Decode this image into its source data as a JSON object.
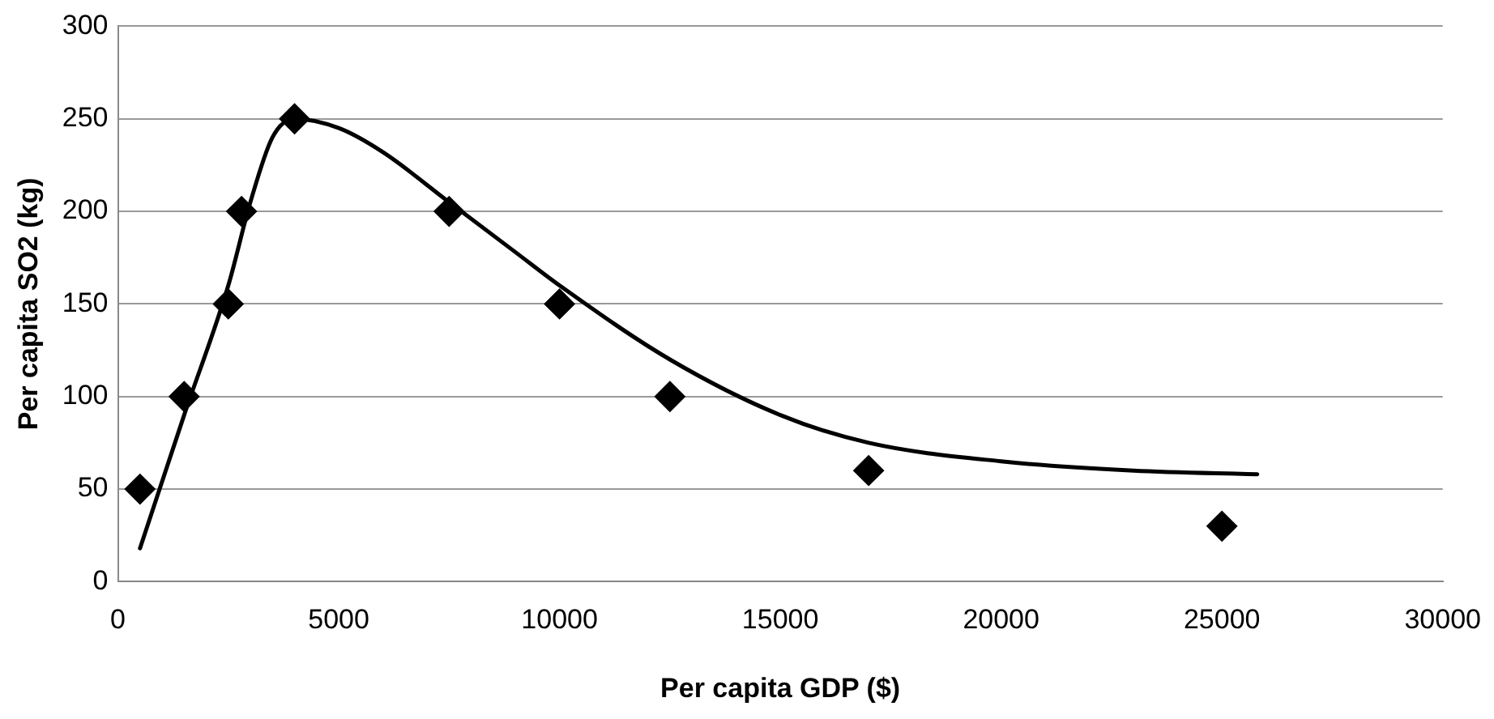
{
  "chart_data": {
    "type": "scatter",
    "xlabel": "Per capita GDP ($)",
    "ylabel": "Per capita SO2 (kg)",
    "xlim": [
      0,
      30000
    ],
    "xticks": [
      0,
      5000,
      10000,
      15000,
      20000,
      25000,
      30000
    ],
    "ylim": [
      0,
      300
    ],
    "yticks": [
      0,
      50,
      100,
      150,
      200,
      250,
      300
    ],
    "grid": "y",
    "series": [
      {
        "color": "#000000",
        "marker": "diamond",
        "x": [
          500,
          1500,
          2500,
          2800,
          4000,
          7500,
          10000,
          12500,
          17000,
          25000
        ],
        "values": [
          50,
          100,
          150,
          200,
          250,
          200,
          150,
          100,
          60,
          30
        ]
      },
      {
        "type": "line",
        "color": "#000000",
        "marker": "none",
        "x": [
          500,
          1500,
          2500,
          3000,
          3500,
          4000,
          5000,
          6000,
          7500,
          9000,
          10000,
          12500,
          15000,
          17000,
          20000,
          23000,
          25800
        ],
        "values": [
          18,
          90,
          160,
          205,
          240,
          250,
          245,
          232,
          205,
          178,
          160,
          120,
          90,
          75,
          65,
          60,
          58
        ]
      }
    ]
  }
}
